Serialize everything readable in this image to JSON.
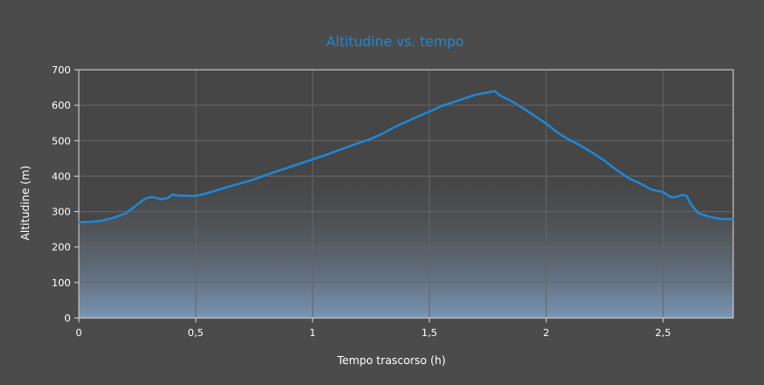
{
  "chart_data": {
    "type": "area",
    "title": "Altitudine vs. tempo",
    "xlabel": "Tempo trascorso (h)",
    "ylabel": "Altitudine (m)",
    "xlim": [
      0,
      2.8
    ],
    "ylim": [
      0,
      700
    ],
    "x_ticks": [
      0,
      0.5,
      1,
      1.5,
      2,
      2.5
    ],
    "x_tick_labels": [
      "0",
      "0,5",
      "1",
      "1,5",
      "2",
      "2,5"
    ],
    "y_ticks": [
      0,
      100,
      200,
      300,
      400,
      500,
      600,
      700
    ],
    "y_tick_labels": [
      "0",
      "100",
      "200",
      "300",
      "400",
      "500",
      "600",
      "700"
    ],
    "grid": true,
    "colors": {
      "background": "#4b4b4b",
      "plot_background": "#464646",
      "line": "#1e88d8",
      "title": "#1e88d8",
      "fill_top": "#4b4b4b",
      "fill_bottom": "#7a95b4",
      "grid": "#666666",
      "axis": "#d8d8d8"
    },
    "series": [
      {
        "x": [
          0,
          0.05,
          0.1,
          0.15,
          0.2,
          0.25,
          0.28,
          0.3,
          0.32,
          0.35,
          0.38,
          0.4,
          0.43,
          0.45,
          0.5,
          0.55,
          0.6,
          0.65,
          0.7,
          0.75,
          0.8,
          0.85,
          0.9,
          0.95,
          1.0,
          1.05,
          1.1,
          1.15,
          1.2,
          1.25,
          1.3,
          1.35,
          1.4,
          1.45,
          1.5,
          1.55,
          1.6,
          1.65,
          1.7,
          1.75,
          1.78,
          1.8,
          1.85,
          1.9,
          1.95,
          2.0,
          2.05,
          2.1,
          2.15,
          2.2,
          2.25,
          2.3,
          2.35,
          2.4,
          2.45,
          2.5,
          2.53,
          2.55,
          2.58,
          2.6,
          2.62,
          2.65,
          2.7,
          2.75,
          2.8
        ],
        "values": [
          270,
          271,
          275,
          283,
          295,
          320,
          335,
          340,
          341,
          335,
          338,
          348,
          345,
          345,
          344,
          352,
          362,
          372,
          381,
          391,
          403,
          414,
          425,
          436,
          447,
          458,
          470,
          482,
          494,
          505,
          520,
          538,
          553,
          568,
          582,
          597,
          608,
          619,
          630,
          636,
          640,
          628,
          612,
          592,
          570,
          548,
          522,
          502,
          485,
          465,
          443,
          418,
          395,
          380,
          362,
          355,
          342,
          340,
          347,
          345,
          320,
          296,
          285,
          279,
          279
        ]
      }
    ]
  }
}
